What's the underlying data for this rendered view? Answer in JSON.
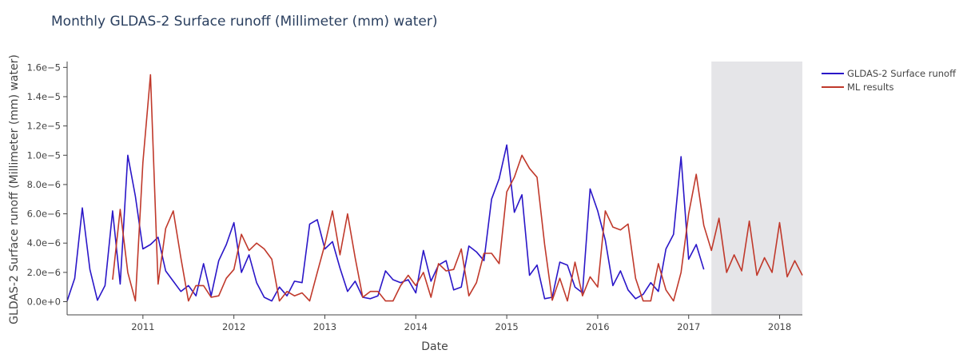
{
  "chart_data": {
    "type": "line",
    "title": "Monthly GLDAS-2 Surface runoff (Millimeter (mm) water)",
    "xlabel": "Date",
    "ylabel": "GLDAS-2 Surface runoff (Millimeter (mm) water)",
    "x_range": [
      "2010-03-01",
      "2018-04-01"
    ],
    "ylim": [
      -9e-07,
      1.64e-05
    ],
    "x_ticks": [
      {
        "date": "2011-01-01",
        "label": "2011"
      },
      {
        "date": "2012-01-01",
        "label": "2012"
      },
      {
        "date": "2013-01-01",
        "label": "2013"
      },
      {
        "date": "2014-01-01",
        "label": "2014"
      },
      {
        "date": "2015-01-01",
        "label": "2015"
      },
      {
        "date": "2016-01-01",
        "label": "2016"
      },
      {
        "date": "2017-01-01",
        "label": "2017"
      },
      {
        "date": "2018-01-01",
        "label": "2018"
      }
    ],
    "y_ticks": [
      {
        "value": 0,
        "label": "0.0e+0"
      },
      {
        "value": 2e-06,
        "label": "2.0e−6"
      },
      {
        "value": 4e-06,
        "label": "4.0e−6"
      },
      {
        "value": 6e-06,
        "label": "6.0e−6"
      },
      {
        "value": 8e-06,
        "label": "8.0e−6"
      },
      {
        "value": 1e-05,
        "label": "1.0e−5"
      },
      {
        "value": 1.2e-05,
        "label": "1.2e−5"
      },
      {
        "value": 1.4e-05,
        "label": "1.4e−5"
      },
      {
        "value": 1.6e-05,
        "label": "1.6e−5"
      }
    ],
    "shaded_region": {
      "start": "2017-04-01",
      "end": "2018-04-01",
      "color": "#e5e5e8"
    },
    "grid": false,
    "legend_position": "top-right",
    "series": [
      {
        "name": "GLDAS-2 Surface runoff",
        "color": "#2a16c8",
        "start": "2010-03-01",
        "values": [
          5e-08,
          1.6e-06,
          6.4e-06,
          2.2e-06,
          1e-07,
          1.1e-06,
          6.2e-06,
          1.2e-06,
          1e-05,
          7.2e-06,
          3.6e-06,
          3.9e-06,
          4.4e-06,
          2.1e-06,
          1.4e-06,
          7e-07,
          1.1e-06,
          4e-07,
          2.6e-06,
          4e-07,
          2.8e-06,
          3.9e-06,
          5.4e-06,
          2e-06,
          3.2e-06,
          1.3e-06,
          3e-07,
          5e-08,
          1e-06,
          4e-07,
          1.4e-06,
          1.3e-06,
          5.3e-06,
          5.6e-06,
          3.6e-06,
          4.1e-06,
          2.3e-06,
          7e-07,
          1.4e-06,
          3e-07,
          2e-07,
          4e-07,
          2.1e-06,
          1.5e-06,
          1.3e-06,
          1.5e-06,
          6e-07,
          3.5e-06,
          1.4e-06,
          2.5e-06,
          2.8e-06,
          8e-07,
          1e-06,
          3.8e-06,
          3.4e-06,
          2.8e-06,
          7e-06,
          8.4e-06,
          1.07e-05,
          6.1e-06,
          7.3e-06,
          1.8e-06,
          2.5e-06,
          2e-07,
          3e-07,
          2.7e-06,
          2.5e-06,
          1e-06,
          6e-07,
          7.7e-06,
          6.2e-06,
          4.2e-06,
          1.1e-06,
          2.1e-06,
          8e-07,
          2e-07,
          5e-07,
          1.3e-06,
          7e-07,
          3.6e-06,
          4.6e-06,
          9.9e-06,
          2.9e-06,
          3.9e-06,
          2.2e-06
        ]
      },
      {
        "name": "ML results",
        "color": "#c0392b",
        "start": "2010-09-01",
        "values": [
          1.5e-06,
          6.3e-06,
          2e-06,
          5e-08,
          9.5e-06,
          1.55e-05,
          1.2e-06,
          5e-06,
          6.2e-06,
          3e-06,
          5e-08,
          1.1e-06,
          1.1e-06,
          3e-07,
          4e-07,
          1.6e-06,
          2.2e-06,
          4.6e-06,
          3.5e-06,
          4e-06,
          3.6e-06,
          2.9e-06,
          5e-08,
          7e-07,
          4e-07,
          6e-07,
          5e-08,
          2e-06,
          3.9e-06,
          6.2e-06,
          3.2e-06,
          6e-06,
          3e-06,
          3e-07,
          7e-07,
          7e-07,
          5e-08,
          5e-08,
          1.1e-06,
          1.8e-06,
          1.1e-06,
          2e-06,
          3e-07,
          2.6e-06,
          2.1e-06,
          2.2e-06,
          3.6e-06,
          4e-07,
          1.3e-06,
          3.3e-06,
          3.3e-06,
          2.6e-06,
          7.5e-06,
          8.5e-06,
          1e-05,
          9.1e-06,
          8.5e-06,
          3.9e-06,
          1e-07,
          1.6e-06,
          5e-08,
          2.7e-06,
          4e-07,
          1.7e-06,
          1e-06,
          6.2e-06,
          5.1e-06,
          4.9e-06,
          5.3e-06,
          1.6e-06,
          5e-08,
          5e-08,
          2.6e-06,
          8e-07,
          5e-08,
          2e-06,
          6e-06,
          8.7e-06,
          5.2e-06,
          3.5e-06,
          5.7e-06,
          2e-06,
          3.2e-06,
          2.1e-06,
          5.5e-06,
          1.8e-06,
          3e-06,
          2e-06,
          5.4e-06,
          1.7e-06,
          2.8e-06,
          1.8e-06
        ]
      }
    ]
  }
}
